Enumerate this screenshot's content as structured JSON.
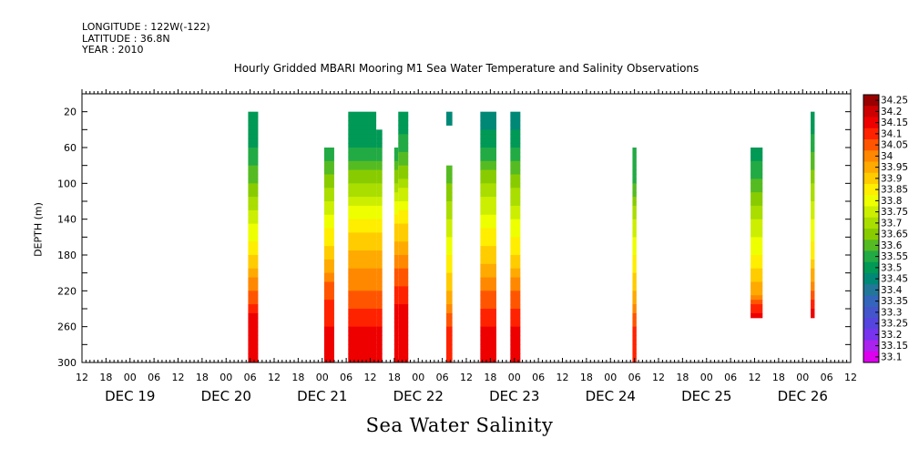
{
  "meta": {
    "longitude": "LONGITUDE : 122W(-122)",
    "latitude": "LATITUDE : 36.8N",
    "year": "YEAR : 2010"
  },
  "chart_data": {
    "type": "heatmap",
    "title": "Hourly Gridded MBARI Mooring M1 Sea Water Temperature and Salinity Observations",
    "xlabel": "Sea Water Salinity",
    "ylabel": "DEPTH (m)",
    "x_axis": {
      "unit": "hours since DEC 19 00:00, 2010",
      "range_hours": [
        -12,
        180
      ],
      "hour_tick_labels": [
        "12",
        "18",
        "00",
        "06",
        "12",
        "18",
        "00",
        "06",
        "12",
        "18",
        "00",
        "06",
        "12",
        "18",
        "00",
        "06",
        "12",
        "18",
        "00",
        "06",
        "12",
        "18",
        "00",
        "06",
        "12",
        "18",
        "00",
        "06",
        "12",
        "18",
        "00",
        "06",
        "12"
      ],
      "day_labels": [
        {
          "label": "DEC 19",
          "hour": 0
        },
        {
          "label": "DEC 20",
          "hour": 24
        },
        {
          "label": "DEC 21",
          "hour": 48
        },
        {
          "label": "DEC 22",
          "hour": 72
        },
        {
          "label": "DEC 23",
          "hour": 96
        },
        {
          "label": "DEC 24",
          "hour": 120
        },
        {
          "label": "DEC 25",
          "hour": 144
        },
        {
          "label": "DEC 26",
          "hour": 168
        }
      ]
    },
    "y_axis": {
      "unit": "m",
      "range": [
        0,
        300
      ],
      "reversed": true,
      "tick_labels": [
        20,
        60,
        100,
        140,
        180,
        220,
        260,
        300
      ]
    },
    "colorbar": {
      "levels": [
        34.25,
        34.2,
        34.15,
        34.1,
        34.05,
        34,
        33.95,
        33.9,
        33.85,
        33.8,
        33.75,
        33.7,
        33.65,
        33.6,
        33.55,
        33.5,
        33.45,
        33.4,
        33.35,
        33.3,
        33.25,
        33.2,
        33.15,
        33.1
      ],
      "labels": [
        "34.25",
        "34.2",
        "34.15",
        "34.1",
        "34.05",
        "34",
        "33.95",
        "33.9",
        "33.85",
        "33.8",
        "33.75",
        "33.7",
        "33.65",
        "33.6",
        "33.55",
        "33.5",
        "33.45",
        "33.4",
        "33.35",
        "33.3",
        "33.25",
        "33.2",
        "33.15",
        "33.1"
      ],
      "colors": [
        "#990000",
        "#cc0000",
        "#ee0000",
        "#ff2200",
        "#ff5500",
        "#ff8800",
        "#ffaa00",
        "#ffcc00",
        "#ffee00",
        "#eeff00",
        "#ccee00",
        "#aadd00",
        "#88cc00",
        "#55bb22",
        "#22aa44",
        "#009955",
        "#008877",
        "#227799",
        "#3366bb",
        "#4455cc",
        "#5544dd",
        "#7733ee",
        "#aa22ee",
        "#dd00ee"
      ]
    },
    "columns": [
      {
        "x_start": 29.5,
        "x_end": 32.0,
        "depth_top": 20,
        "depth_bottom": 300,
        "profile": [
          [
            20,
            33.5
          ],
          [
            60,
            33.55
          ],
          [
            100,
            33.65
          ],
          [
            140,
            33.78
          ],
          [
            180,
            33.9
          ],
          [
            220,
            34.05
          ],
          [
            260,
            34.2
          ],
          [
            300,
            34.18
          ]
        ]
      },
      {
        "x_start": 48.5,
        "x_end": 51.0,
        "depth_top": 60,
        "depth_bottom": 300,
        "profile": [
          [
            60,
            33.55
          ],
          [
            100,
            33.68
          ],
          [
            140,
            33.82
          ],
          [
            180,
            33.92
          ],
          [
            220,
            34.08
          ],
          [
            260,
            34.15
          ],
          [
            300,
            34.15
          ]
        ]
      },
      {
        "x_start": 54.5,
        "x_end": 61.5,
        "depth_top": 20,
        "depth_bottom": 300,
        "profile": [
          [
            20,
            33.5
          ],
          [
            60,
            33.55
          ],
          [
            100,
            33.7
          ],
          [
            140,
            33.85
          ],
          [
            180,
            33.97
          ],
          [
            220,
            34.05
          ],
          [
            260,
            34.15
          ],
          [
            300,
            34.15
          ]
        ]
      },
      {
        "x_start": 61.5,
        "x_end": 63.0,
        "depth_top": 40,
        "depth_bottom": 300,
        "profile": [
          [
            40,
            33.5
          ],
          [
            60,
            33.55
          ],
          [
            100,
            33.7
          ],
          [
            140,
            33.85
          ],
          [
            180,
            33.97
          ],
          [
            220,
            34.05
          ],
          [
            260,
            34.15
          ],
          [
            300,
            34.15
          ]
        ]
      },
      {
        "x_start": 66.0,
        "x_end": 67.0,
        "depth_top": 60,
        "depth_bottom": 300,
        "profile": [
          [
            60,
            33.55
          ],
          [
            100,
            33.7
          ],
          [
            140,
            33.88
          ],
          [
            180,
            34.0
          ],
          [
            220,
            34.12
          ],
          [
            260,
            34.2
          ],
          [
            300,
            34.15
          ]
        ]
      },
      {
        "x_start": 67.0,
        "x_end": 69.5,
        "depth_top": 20,
        "depth_bottom": 300,
        "profile": [
          [
            20,
            33.5
          ],
          [
            60,
            33.58
          ],
          [
            100,
            33.72
          ],
          [
            140,
            33.88
          ],
          [
            180,
            34.0
          ],
          [
            220,
            34.12
          ],
          [
            260,
            34.2
          ],
          [
            300,
            34.15
          ]
        ]
      },
      {
        "x_start": 79.0,
        "x_end": 80.5,
        "depth_top": 20,
        "depth_bottom": 35,
        "profile": [
          [
            20,
            33.45
          ],
          [
            35,
            33.45
          ]
        ]
      },
      {
        "x_start": 79.0,
        "x_end": 80.5,
        "depth_top": 80,
        "depth_bottom": 300,
        "profile": [
          [
            80,
            33.6
          ],
          [
            100,
            33.65
          ],
          [
            140,
            33.75
          ],
          [
            180,
            33.85
          ],
          [
            220,
            33.95
          ],
          [
            260,
            34.1
          ],
          [
            300,
            34.12
          ]
        ]
      },
      {
        "x_start": 87.5,
        "x_end": 91.5,
        "depth_top": 20,
        "depth_bottom": 300,
        "profile": [
          [
            20,
            33.45
          ],
          [
            60,
            33.55
          ],
          [
            100,
            33.7
          ],
          [
            140,
            33.82
          ],
          [
            180,
            33.92
          ],
          [
            220,
            34.05
          ],
          [
            260,
            34.15
          ],
          [
            300,
            34.15
          ]
        ]
      },
      {
        "x_start": 95.0,
        "x_end": 97.5,
        "depth_top": 20,
        "depth_bottom": 300,
        "profile": [
          [
            20,
            33.45
          ],
          [
            60,
            33.55
          ],
          [
            100,
            33.68
          ],
          [
            140,
            33.8
          ],
          [
            180,
            33.9
          ],
          [
            220,
            34.05
          ],
          [
            260,
            34.15
          ],
          [
            300,
            34.15
          ]
        ]
      },
      {
        "x_start": 125.5,
        "x_end": 126.5,
        "depth_top": 60,
        "depth_bottom": 300,
        "profile": [
          [
            60,
            33.55
          ],
          [
            100,
            33.6
          ],
          [
            140,
            33.75
          ],
          [
            180,
            33.85
          ],
          [
            220,
            33.95
          ],
          [
            260,
            34.1
          ],
          [
            300,
            34.15
          ]
        ]
      },
      {
        "x_start": 155.0,
        "x_end": 158.0,
        "depth_top": 60,
        "depth_bottom": 250,
        "profile": [
          [
            60,
            33.5
          ],
          [
            100,
            33.62
          ],
          [
            140,
            33.75
          ],
          [
            180,
            33.85
          ],
          [
            220,
            33.98
          ],
          [
            250,
            34.2
          ]
        ]
      },
      {
        "x_start": 170.0,
        "x_end": 171.0,
        "depth_top": 20,
        "depth_bottom": 250,
        "profile": [
          [
            20,
            33.5
          ],
          [
            60,
            33.58
          ],
          [
            100,
            33.7
          ],
          [
            140,
            33.8
          ],
          [
            180,
            33.88
          ],
          [
            220,
            34.05
          ],
          [
            250,
            34.2
          ]
        ]
      }
    ]
  }
}
